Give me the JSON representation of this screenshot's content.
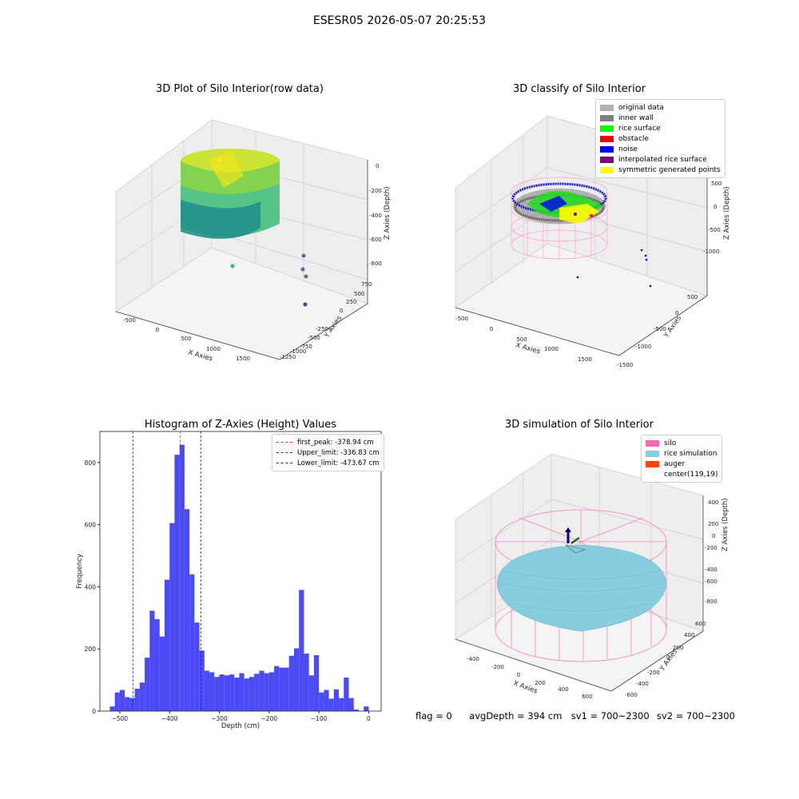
{
  "suptitle": "ESESR05 2026-05-07 20:25:53",
  "footer": {
    "flag": "flag = 0",
    "avg": "avgDepth = 394 cm",
    "sv1": "sv1 = 700~2300",
    "sv2": "sv2 = 700~2300"
  },
  "colors": {
    "hist_bar": "#4b4bf5",
    "first_peak": "#e03030",
    "limits": "#2020d0",
    "silo": "#ff69b4",
    "rice_simulation": "#87cde0",
    "auger": "#ff4500"
  },
  "chart_data": [
    {
      "type": "scatter",
      "projection": "3d",
      "title": "3D Plot of Silo Interior(row data)",
      "xlabel": "X Axies",
      "ylabel": "Y Axies",
      "zlabel": "Z Axies (Depth)",
      "xticks": [
        "-500",
        "0",
        "500",
        "1000",
        "1500"
      ],
      "yticks": [
        "750",
        "500",
        "250",
        "0",
        "-250",
        "-500",
        "-750",
        "-1000",
        "-1250"
      ],
      "zticks": [
        "0",
        "-200",
        "-400",
        "-600",
        "-800"
      ],
      "colormap": "viridis"
    },
    {
      "type": "scatter",
      "projection": "3d",
      "title": "3D classify of Silo Interior",
      "xlabel": "X Axies",
      "ylabel": "Y Axies",
      "zlabel": "Z Axies (Depth)",
      "xticks": [
        "-500",
        "0",
        "500",
        "1000",
        "1500"
      ],
      "yticks": [
        "500",
        "0",
        "-500",
        "-1000",
        "-1500"
      ],
      "zticks": [
        "500",
        "0",
        "-500",
        "-1000"
      ],
      "legend": [
        {
          "label": "original data",
          "color": "#b0b0b0"
        },
        {
          "label": "inner wall",
          "color": "#808080"
        },
        {
          "label": "rice surface",
          "color": "#00ff00"
        },
        {
          "label": "obstacle",
          "color": "#ff0000"
        },
        {
          "label": "noise",
          "color": "#0000ff"
        },
        {
          "label": "interpolated rice surface",
          "color": "#800080"
        },
        {
          "label": "symmetric generated points",
          "color": "#ffff00"
        }
      ]
    },
    {
      "type": "bar",
      "title": "Histogram of Z-Axies (Height) Values",
      "xlabel": "Depth (cm)",
      "ylabel": "Frequency",
      "xlim": [
        -540,
        25
      ],
      "ylim": [
        0,
        900
      ],
      "bin_width": 10,
      "x": [
        -520,
        -510,
        -500,
        -490,
        -480,
        -470,
        -460,
        -450,
        -440,
        -430,
        -420,
        -410,
        -400,
        -390,
        -380,
        -370,
        -360,
        -350,
        -340,
        -330,
        -320,
        -310,
        -300,
        -290,
        -280,
        -270,
        -260,
        -250,
        -240,
        -230,
        -220,
        -210,
        -200,
        -190,
        -180,
        -170,
        -160,
        -150,
        -140,
        -130,
        -120,
        -110,
        -100,
        -90,
        -80,
        -70,
        -60,
        -50,
        -40,
        -30,
        -20,
        -10,
        0
      ],
      "values": [
        15,
        60,
        68,
        45,
        42,
        72,
        92,
        172,
        323,
        296,
        240,
        423,
        605,
        825,
        857,
        650,
        440,
        285,
        195,
        130,
        125,
        110,
        118,
        115,
        118,
        108,
        122,
        105,
        110,
        120,
        130,
        122,
        125,
        145,
        140,
        140,
        178,
        202,
        390,
        185,
        115,
        180,
        60,
        0,
        0,
        0,
        0,
        0,
        0,
        0,
        0,
        0,
        0
      ],
      "values_tail": [
        [
          -90,
          68
        ],
        [
          -80,
          40
        ],
        [
          -70,
          70
        ],
        [
          -60,
          42
        ],
        [
          -50,
          108
        ],
        [
          -40,
          42
        ],
        [
          -30,
          5
        ],
        [
          -20,
          0
        ],
        [
          -10,
          15
        ]
      ],
      "xticks": [
        -500,
        -400,
        -300,
        -200,
        -100,
        0
      ],
      "yticks": [
        0,
        200,
        400,
        600,
        800
      ],
      "vlines": [
        {
          "name": "first_peak",
          "label": "first_peak: -378.94 cm",
          "x": -378.94
        },
        {
          "name": "upper",
          "label": "Upper_limit: -336.83 cm",
          "x": -336.83
        },
        {
          "name": "lower",
          "label": "Lower_limit: -473.67 cm",
          "x": -473.67
        }
      ]
    },
    {
      "type": "surface",
      "projection": "3d",
      "title": "3D simulation of Silo Interior",
      "xlabel": "X Axies",
      "ylabel": "Y Axies",
      "zlabel": "Z Axies (Depth)",
      "xticks": [
        "-400",
        "-200",
        "0",
        "200",
        "400",
        "600"
      ],
      "yticks": [
        "600",
        "400",
        "200",
        "0",
        "-200",
        "-400",
        "-600"
      ],
      "zticks": [
        "400",
        "200",
        "0",
        "-200",
        "-400",
        "-600",
        "-800"
      ],
      "legend": [
        {
          "label": "silo",
          "color": "#ff69b4"
        },
        {
          "label": "rice simulation",
          "color": "#87cde0"
        },
        {
          "label": "auger",
          "color": "#ff4500"
        },
        {
          "label": "center(119,19)",
          "color": ""
        }
      ]
    }
  ]
}
